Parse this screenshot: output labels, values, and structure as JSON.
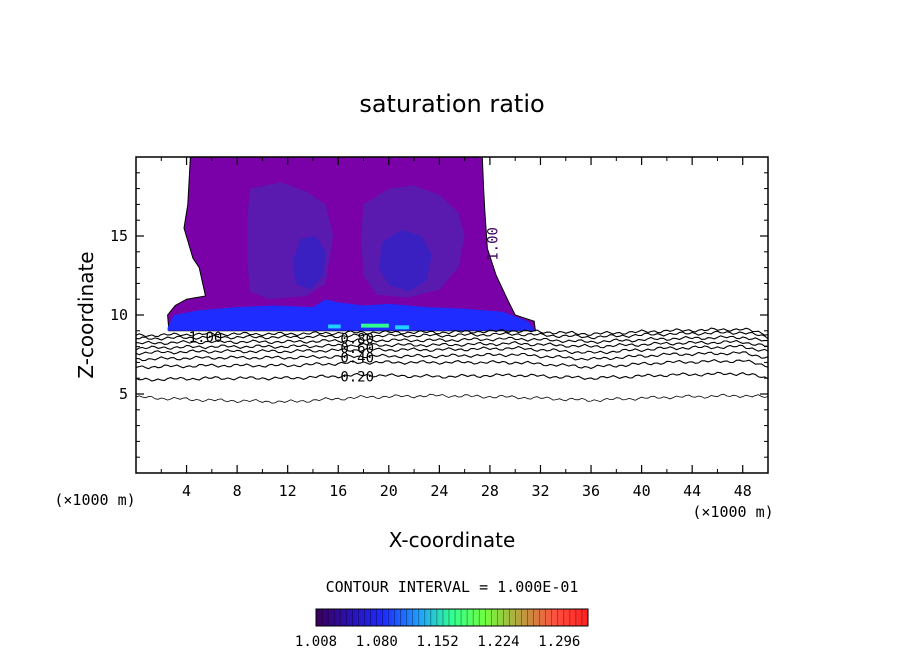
{
  "chart_data": {
    "type": "heatmap",
    "title": "saturation ratio",
    "xlabel": "X-coordinate",
    "ylabel": "Z-coordinate",
    "x_unit": "(×1000 m)",
    "z_unit": "(×1000 m)",
    "xlim": [
      0,
      50
    ],
    "ylim": [
      0,
      20
    ],
    "x_ticks": [
      4,
      8,
      12,
      16,
      20,
      24,
      28,
      32,
      36,
      40,
      44,
      48
    ],
    "y_ticks": [
      5,
      10,
      15
    ],
    "contour_interval_text": "CONTOUR INTERVAL = 1.000E-01",
    "colorbar_ticks": [
      "1.008",
      "1.080",
      "1.152",
      "1.224",
      "1.296"
    ],
    "colorbar_range": [
      1.008,
      1.33
    ],
    "colors": {
      "dark_purple": "#3a005a",
      "purple": "#7a00a8",
      "violet": "#5a1ab0",
      "indigo": "#3a20c0",
      "blue": "#1e2cff",
      "cyan": "#20d0ff",
      "green": "#30ff90",
      "red": "#ff2020"
    },
    "contour_labels": [
      {
        "text": "1.00",
        "x": 5.5,
        "y": 8.6
      },
      {
        "text": "0.80",
        "x": 17.5,
        "y": 8.5
      },
      {
        "text": "0.60",
        "x": 17.5,
        "y": 7.9
      },
      {
        "text": "0.40",
        "x": 17.5,
        "y": 7.3
      },
      {
        "text": "0.20",
        "x": 17.5,
        "y": 6.1
      },
      {
        "text": "1.00",
        "x": 28.2,
        "y": 14.5
      }
    ],
    "contour_lines": [
      {
        "x": [
          0,
          6,
          12,
          18,
          24,
          30,
          36,
          42,
          48,
          50
        ],
        "y": [
          4.8,
          4.6,
          4.5,
          4.8,
          4.9,
          4.8,
          4.6,
          4.8,
          4.9,
          4.8
        ]
      },
      {
        "x": [
          0,
          6,
          12,
          18,
          24,
          30,
          36,
          42,
          48,
          50
        ],
        "y": [
          5.9,
          6.0,
          6.0,
          6.2,
          6.1,
          6.2,
          6.0,
          6.2,
          6.3,
          6.0
        ]
      },
      {
        "x": [
          0,
          6,
          12,
          18,
          24,
          30,
          36,
          42,
          48,
          50
        ],
        "y": [
          6.7,
          6.8,
          6.8,
          7.0,
          7.0,
          7.0,
          6.7,
          7.0,
          7.1,
          6.8
        ]
      },
      {
        "x": [
          0,
          6,
          12,
          18,
          24,
          30,
          36,
          42,
          48,
          50
        ],
        "y": [
          7.2,
          7.3,
          7.3,
          7.4,
          7.4,
          7.5,
          7.2,
          7.5,
          7.6,
          7.3
        ]
      },
      {
        "x": [
          0,
          6,
          12,
          18,
          24,
          30,
          36,
          42,
          48,
          50
        ],
        "y": [
          7.6,
          7.7,
          7.7,
          7.8,
          7.8,
          7.9,
          7.6,
          7.9,
          8.0,
          7.7
        ]
      },
      {
        "x": [
          0,
          6,
          12,
          18,
          24,
          30,
          36,
          42,
          48,
          50
        ],
        "y": [
          7.9,
          8.0,
          8.0,
          8.1,
          8.1,
          8.2,
          8.0,
          8.2,
          8.3,
          8.0
        ]
      },
      {
        "x": [
          0,
          6,
          12,
          18,
          24,
          30,
          36,
          42,
          48,
          50
        ],
        "y": [
          8.2,
          8.3,
          8.3,
          8.4,
          8.4,
          8.5,
          8.3,
          8.5,
          8.6,
          8.3
        ]
      },
      {
        "x": [
          0,
          6,
          12,
          18,
          24,
          30,
          36,
          42,
          48,
          50
        ],
        "y": [
          8.5,
          8.6,
          8.6,
          8.7,
          8.7,
          8.8,
          8.6,
          8.8,
          8.9,
          8.6
        ]
      },
      {
        "x": [
          0,
          6,
          12,
          18,
          24,
          30,
          36,
          42,
          48,
          50
        ],
        "y": [
          8.7,
          8.8,
          8.8,
          8.9,
          8.9,
          9.0,
          8.8,
          9.0,
          9.1,
          8.8
        ]
      }
    ],
    "regions": [
      {
        "name": "outer-cloud",
        "color": "purple",
        "polygon": [
          [
            4.3,
            20
          ],
          [
            4.1,
            17
          ],
          [
            3.8,
            15.5
          ],
          [
            4.5,
            13.6
          ],
          [
            5.0,
            13.0
          ],
          [
            5.5,
            11.2
          ],
          [
            4.0,
            11.0
          ],
          [
            3.1,
            10.6
          ],
          [
            2.5,
            10.0
          ],
          [
            2.6,
            9.0
          ],
          [
            10.0,
            9.0
          ],
          [
            20.0,
            9.0
          ],
          [
            31.6,
            9.0
          ],
          [
            31.5,
            9.6
          ],
          [
            30.0,
            10.0
          ],
          [
            29.5,
            10.8
          ],
          [
            28.5,
            12.5
          ],
          [
            27.8,
            14.2
          ],
          [
            27.6,
            16.5
          ],
          [
            27.5,
            18.0
          ],
          [
            27.4,
            20
          ]
        ]
      },
      {
        "name": "inner-left",
        "color": "violet",
        "polygon": [
          [
            9.0,
            18.0
          ],
          [
            11.5,
            18.4
          ],
          [
            13.5,
            17.8
          ],
          [
            15.0,
            17.0
          ],
          [
            15.6,
            15.0
          ],
          [
            15.3,
            13.5
          ],
          [
            15.0,
            12.0
          ],
          [
            13.5,
            11.2
          ],
          [
            10.5,
            11.0
          ],
          [
            9.0,
            11.5
          ],
          [
            8.8,
            13.5
          ],
          [
            8.8,
            16.0
          ]
        ]
      },
      {
        "name": "inner-right",
        "color": "violet",
        "polygon": [
          [
            18.0,
            17.0
          ],
          [
            20.0,
            18.0
          ],
          [
            22.0,
            18.2
          ],
          [
            24.0,
            17.6
          ],
          [
            25.5,
            16.5
          ],
          [
            26.0,
            15.0
          ],
          [
            25.5,
            13.0
          ],
          [
            24.0,
            11.6
          ],
          [
            21.5,
            11.1
          ],
          [
            19.0,
            11.3
          ],
          [
            18.0,
            12.5
          ],
          [
            17.8,
            15.0
          ]
        ]
      },
      {
        "name": "core-left",
        "color": "indigo",
        "polygon": [
          [
            13.0,
            14.8
          ],
          [
            14.2,
            15.0
          ],
          [
            15.0,
            14.0
          ],
          [
            14.8,
            12.5
          ],
          [
            13.8,
            11.6
          ],
          [
            12.6,
            12.0
          ],
          [
            12.4,
            13.4
          ]
        ]
      },
      {
        "name": "core-right",
        "color": "indigo",
        "polygon": [
          [
            19.5,
            14.6
          ],
          [
            21.0,
            15.4
          ],
          [
            22.6,
            15.0
          ],
          [
            23.4,
            13.8
          ],
          [
            23.0,
            12.2
          ],
          [
            21.6,
            11.5
          ],
          [
            20.0,
            11.9
          ],
          [
            19.2,
            13.0
          ]
        ]
      },
      {
        "name": "base-layer",
        "color": "blue",
        "polygon": [
          [
            2.5,
            9.2
          ],
          [
            3.0,
            10.0
          ],
          [
            5.0,
            10.3
          ],
          [
            8.0,
            10.5
          ],
          [
            11.0,
            10.6
          ],
          [
            14.0,
            10.5
          ],
          [
            15.0,
            11.0
          ],
          [
            16.0,
            10.8
          ],
          [
            18.0,
            10.6
          ],
          [
            20.0,
            10.7
          ],
          [
            23.0,
            10.5
          ],
          [
            26.0,
            10.4
          ],
          [
            29.0,
            10.2
          ],
          [
            31.0,
            9.6
          ],
          [
            31.6,
            9.0
          ],
          [
            2.5,
            9.0
          ]
        ]
      }
    ],
    "highlights": [
      {
        "color": "cyan",
        "x": [
          15.2,
          16.2
        ],
        "y": [
          9.15,
          9.4
        ]
      },
      {
        "color": "green",
        "x": [
          17.8,
          20.0
        ],
        "y": [
          9.2,
          9.45
        ]
      },
      {
        "color": "cyan",
        "x": [
          20.5,
          21.6
        ],
        "y": [
          9.1,
          9.35
        ]
      }
    ]
  }
}
